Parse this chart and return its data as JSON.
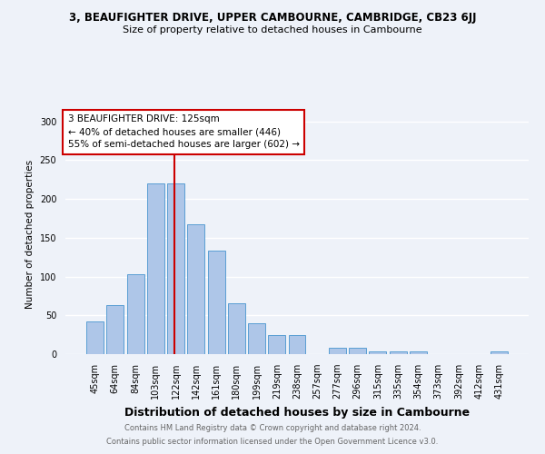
{
  "title": "3, BEAUFIGHTER DRIVE, UPPER CAMBOURNE, CAMBRIDGE, CB23 6JJ",
  "subtitle": "Size of property relative to detached houses in Cambourne",
  "xlabel": "Distribution of detached houses by size in Cambourne",
  "ylabel": "Number of detached properties",
  "categories": [
    "45sqm",
    "64sqm",
    "84sqm",
    "103sqm",
    "122sqm",
    "142sqm",
    "161sqm",
    "180sqm",
    "199sqm",
    "219sqm",
    "238sqm",
    "257sqm",
    "277sqm",
    "296sqm",
    "315sqm",
    "335sqm",
    "354sqm",
    "373sqm",
    "392sqm",
    "412sqm",
    "431sqm"
  ],
  "values": [
    42,
    63,
    103,
    220,
    220,
    167,
    133,
    65,
    40,
    25,
    25,
    0,
    8,
    8,
    4,
    4,
    4,
    0,
    0,
    0,
    3
  ],
  "bar_color": "#aec6e8",
  "bar_edge_color": "#5a9fd4",
  "vline_color": "#cc0000",
  "annotation_line1": "3 BEAUFIGHTER DRIVE: 125sqm",
  "annotation_line2": "← 40% of detached houses are smaller (446)",
  "annotation_line3": "55% of semi-detached houses are larger (602) →",
  "annotation_box_color": "#cc0000",
  "ylim": [
    0,
    310
  ],
  "yticks": [
    0,
    50,
    100,
    150,
    200,
    250,
    300
  ],
  "footnote1": "Contains HM Land Registry data © Crown copyright and database right 2024.",
  "footnote2": "Contains public sector information licensed under the Open Government Licence v3.0.",
  "background_color": "#eef2f9",
  "grid_color": "#ffffff"
}
